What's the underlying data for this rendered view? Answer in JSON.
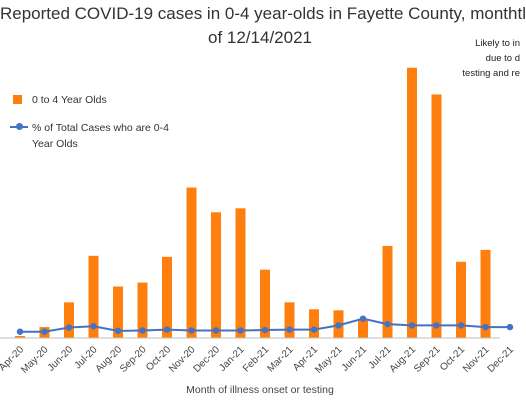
{
  "chart_data": {
    "type": "bar+line",
    "title_lines": [
      "Reported COVID-19 cases in 0-4 year-olds in Fayette County, monthtl",
      "of 12/14/2021"
    ],
    "xlabel": "Month of illness onset or testing",
    "note_lines": [
      "Likely to in",
      "due to d",
      "testing and re"
    ],
    "categories": [
      "Apr-20",
      "May-20",
      "Jun-20",
      "Jul-20",
      "Aug-20",
      "Sep-20",
      "Oct-20",
      "Nov-20",
      "Dec-20",
      "Jan-21",
      "Feb-21",
      "Mar-21",
      "Apr-21",
      "May-21",
      "Jun-21",
      "Jul-21",
      "Aug-21",
      "Sep-21",
      "Oct-21",
      "Nov-21",
      "Dec-21"
    ],
    "series": [
      {
        "name": "0 to 4 Year Olds",
        "kind": "bar",
        "color": "#ff7f0e",
        "values": [
          2,
          11,
          36,
          83,
          52,
          56,
          82,
          152,
          127,
          131,
          69,
          36,
          29,
          28,
          19,
          93,
          273,
          246,
          77,
          89,
          0
        ]
      },
      {
        "name": "% of Total Cases who are 0-4 Year Olds",
        "kind": "line",
        "color": "#4472c4",
        "values": [
          1.5,
          1.5,
          2.5,
          2.8,
          1.7,
          1.8,
          2.0,
          1.8,
          1.8,
          1.8,
          1.9,
          2.0,
          2.0,
          3.0,
          4.6,
          3.3,
          3.0,
          3.0,
          3.0,
          2.6,
          2.6
        ]
      }
    ],
    "grid": false,
    "legend_position": "left"
  }
}
